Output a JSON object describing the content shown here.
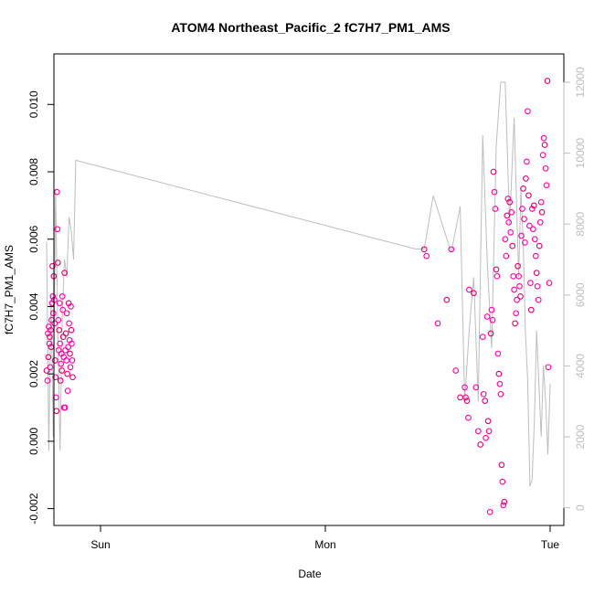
{
  "chart_data": {
    "type": "scatter",
    "title": "ATOM4 Northeast_Pacific_2 fC7H7_PM1_AMS",
    "xlabel": "Date",
    "ylabel": "fC7H7_PM1_AMS",
    "x_tick_labels": [
      "Sun",
      "Mon",
      "Tue"
    ],
    "y_left": {
      "range": [
        -0.0025,
        0.0115
      ],
      "ticks": [
        -0.002,
        0.0,
        0.002,
        0.004,
        0.006,
        0.008,
        0.01
      ],
      "tick_labels": [
        "-0.002",
        "0.000",
        "0.002",
        "0.004",
        "0.006",
        "0.008",
        "0.010"
      ]
    },
    "y_right": {
      "range": [
        -500,
        12800
      ],
      "ticks": [
        0,
        2000,
        4000,
        6000,
        8000,
        10000,
        12000
      ],
      "tick_labels": [
        "0",
        "2000",
        "4000",
        "6000",
        "8000",
        "10000",
        "12000"
      ],
      "color": "#bebebe"
    },
    "colors": {
      "points_primary": "#ff00aa",
      "points_secondary": "#e0006e",
      "line": "#bebebe"
    },
    "series": [
      {
        "kind": "points",
        "x": [
          -0.12,
          -0.118,
          -0.117,
          -0.116,
          -0.115,
          -0.114,
          -0.113,
          -0.112,
          -0.111,
          -0.11,
          -0.109,
          -0.108,
          -0.107,
          -0.106,
          -0.105,
          -0.104,
          -0.103,
          -0.102,
          -0.101,
          -0.1,
          -0.099,
          -0.098,
          -0.097,
          -0.096,
          -0.095,
          -0.094,
          -0.093,
          -0.092,
          -0.091,
          -0.09,
          -0.089,
          -0.088,
          -0.087,
          -0.086,
          -0.085,
          -0.084,
          -0.083,
          -0.082,
          -0.081,
          -0.08,
          -0.079,
          -0.078,
          -0.077,
          -0.076,
          -0.075,
          -0.074,
          -0.073,
          -0.072,
          -0.071,
          -0.07,
          -0.069,
          -0.068,
          -0.067,
          -0.066,
          -0.065,
          -0.064,
          -0.063,
          -0.062
        ],
        "y": [
          0.0021,
          0.0018,
          0.0032,
          0.0025,
          0.0034,
          0.0029,
          0.0031,
          0.0022,
          0.0033,
          0.0028,
          0.0036,
          0.0041,
          0.0052,
          0.0043,
          0.0038,
          0.0049,
          0.0042,
          0.0035,
          0.0024,
          0.0019,
          0.0013,
          0.0009,
          0.0074,
          0.0063,
          0.0053,
          0.0036,
          0.0027,
          0.0033,
          0.0041,
          0.0029,
          0.0018,
          0.0023,
          0.0026,
          0.0021,
          0.0043,
          0.0039,
          0.0031,
          0.0025,
          0.001,
          0.005,
          0.001,
          0.0027,
          0.0032,
          0.0024,
          0.0038,
          0.002,
          0.0015,
          0.0028,
          0.0041,
          0.0035,
          0.003,
          0.0026,
          0.0022,
          0.004,
          0.0033,
          0.0029,
          0.0024,
          0.0019
        ]
      },
      {
        "kind": "points",
        "x": [
          0.72,
          0.725,
          0.75,
          0.77,
          0.78,
          0.79,
          0.8,
          0.81,
          0.812,
          0.815,
          0.818,
          0.82,
          0.83,
          0.835,
          0.84,
          0.845,
          0.85,
          0.852,
          0.855,
          0.857,
          0.86,
          0.862,
          0.864,
          0.866,
          0.868,
          0.87,
          0.872,
          0.874,
          0.876,
          0.878,
          0.88,
          0.882,
          0.884,
          0.886,
          0.888,
          0.89,
          0.892,
          0.894,
          0.896,
          0.898,
          0.9,
          0.902,
          0.904,
          0.906,
          0.908,
          0.91,
          0.912,
          0.914,
          0.916,
          0.918,
          0.92,
          0.922,
          0.924,
          0.926,
          0.928,
          0.93,
          0.932,
          0.934,
          0.936,
          0.938,
          0.94,
          0.942,
          0.944,
          0.946,
          0.948,
          0.95,
          0.952,
          0.954,
          0.956,
          0.958,
          0.96,
          0.962,
          0.964,
          0.966,
          0.968,
          0.97,
          0.972,
          0.974,
          0.976,
          0.978,
          0.98,
          0.982,
          0.984,
          0.986,
          0.988,
          0.99,
          0.992,
          0.994,
          0.996,
          0.998
        ],
        "y": [
          0.0057,
          0.0055,
          0.0035,
          0.0042,
          0.0057,
          0.0021,
          0.0013,
          0.0016,
          0.0013,
          0.0012,
          0.0007,
          0.0045,
          0.0044,
          0.0016,
          0.0003,
          -0.0001,
          0.0031,
          0.0014,
          0.0012,
          0.0001,
          0.0037,
          0.0006,
          0.0003,
          -0.0021,
          0.0032,
          0.0039,
          0.0036,
          0.008,
          0.0074,
          0.0069,
          0.0051,
          0.0049,
          0.0026,
          0.002,
          0.0017,
          0.0014,
          -0.0007,
          -0.0012,
          -0.0019,
          -0.0018,
          0.006,
          0.0055,
          0.0067,
          0.0072,
          0.0065,
          0.0071,
          0.0062,
          0.0068,
          0.0058,
          0.0049,
          0.0045,
          0.0035,
          0.0038,
          0.0042,
          0.0052,
          0.0049,
          0.0046,
          0.0043,
          0.0061,
          0.0069,
          0.0075,
          0.0066,
          0.0059,
          0.0078,
          0.0083,
          0.0098,
          0.0073,
          0.0064,
          0.0047,
          0.0039,
          0.0069,
          0.0063,
          0.007,
          0.006,
          0.0055,
          0.005,
          0.0046,
          0.0042,
          0.0058,
          0.0065,
          0.0071,
          0.0068,
          0.0085,
          0.009,
          0.0088,
          0.0081,
          0.0076,
          0.0107,
          0.0022,
          0.0047
        ]
      },
      {
        "kind": "line",
        "x": [
          -0.12,
          -0.115,
          -0.11,
          -0.105,
          -0.1,
          -0.095,
          -0.09,
          -0.085,
          -0.08,
          -0.075,
          -0.07,
          -0.065,
          -0.06,
          -0.055,
          0.7,
          0.72,
          0.74,
          0.76,
          0.78,
          0.8,
          0.81,
          0.82,
          0.83,
          0.84,
          0.85,
          0.86,
          0.87,
          0.88,
          0.89,
          0.9,
          0.91,
          0.92,
          0.93,
          0.935,
          0.94,
          0.945,
          0.95,
          0.955,
          0.96,
          0.965,
          0.97,
          0.975,
          0.98,
          0.985,
          0.99,
          0.995,
          1.0
        ],
        "y": [
          7500,
          1600,
          6000,
          2000,
          9000,
          5000,
          1600,
          5500,
          7000,
          6500,
          8200,
          7800,
          7000,
          9800,
          7300,
          7300,
          8800,
          8000,
          7200,
          8500,
          3000,
          5000,
          6500,
          3000,
          10500,
          7000,
          4500,
          10200,
          12000,
          12000,
          8000,
          11000,
          6500,
          9000,
          7500,
          5000,
          3600,
          600,
          800,
          2500,
          5000,
          3500,
          2000,
          4000,
          3000,
          1500,
          3500
        ]
      }
    ]
  }
}
